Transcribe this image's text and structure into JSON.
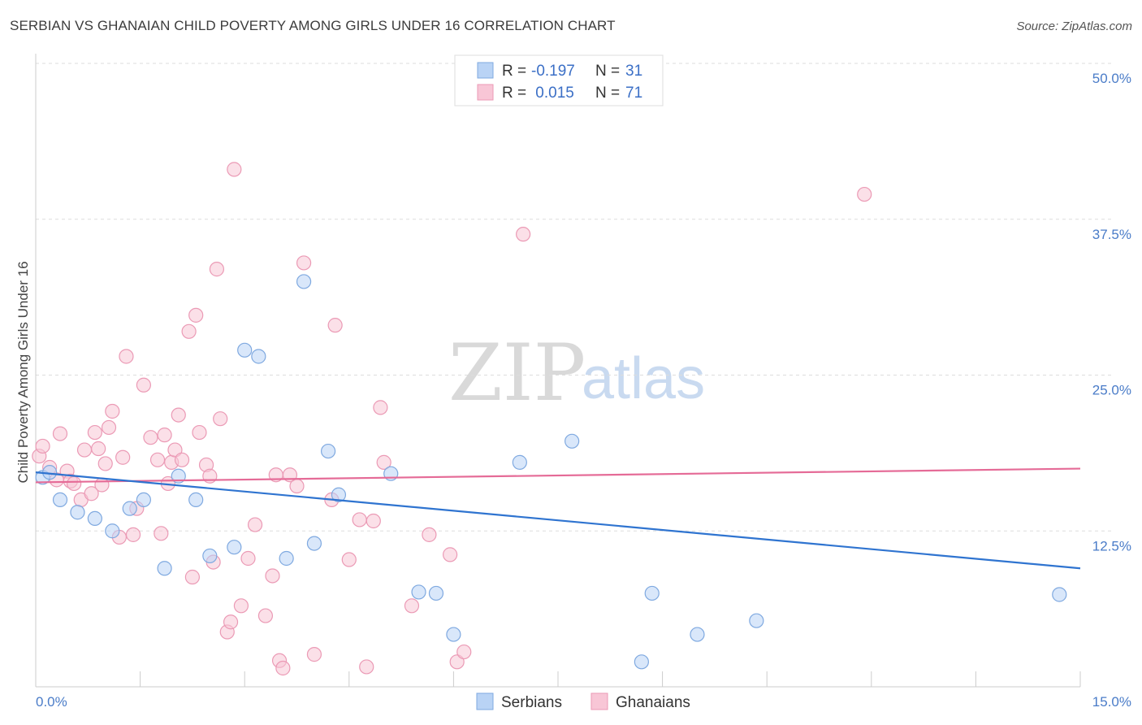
{
  "header": {
    "title": "SERBIAN VS GHANAIAN CHILD POVERTY AMONG GIRLS UNDER 16 CORRELATION CHART",
    "source": "Source: ZipAtlas.com"
  },
  "legend": {
    "rows": [
      {
        "r_label": "R = ",
        "r_value": "-0.197",
        "n_label": "N = ",
        "n_value": "31"
      },
      {
        "r_label": "R = ",
        "r_value": " 0.015",
        "n_label": "N = ",
        "n_value": "71"
      }
    ]
  },
  "bottom_legend": {
    "items": [
      {
        "label": "Serbians"
      },
      {
        "label": "Ghanaians"
      }
    ]
  },
  "watermark": {
    "zip": "ZIP",
    "atlas": "atlas"
  },
  "colors": {
    "serbian_fill": "#b9d3f5",
    "serbian_stroke": "#7fa9e0",
    "serbian_line": "#2f74d0",
    "ghanaian_fill": "#f8c6d6",
    "ghanaian_stroke": "#eb9ab5",
    "ghanaian_line": "#e56b97",
    "grid": "#dddddd",
    "tick": "#4a7cc8"
  },
  "chart_data": {
    "type": "scatter",
    "title": "SERBIAN VS GHANAIAN CHILD POVERTY AMONG GIRLS UNDER 16 CORRELATION CHART",
    "xlabel": "",
    "ylabel": "Child Poverty Among Girls Under 16",
    "xlim": [
      0,
      15
    ],
    "ylim": [
      0,
      50
    ],
    "x_tick_labels": [
      "0.0%",
      "15.0%"
    ],
    "y_ticks": [
      12.5,
      25.0,
      37.5,
      50.0
    ],
    "y_tick_labels": [
      "12.5%",
      "25.0%",
      "37.5%",
      "50.0%"
    ],
    "grid": true,
    "legend_position": "top-center",
    "series": [
      {
        "name": "Serbians",
        "r": -0.197,
        "n": 31,
        "trend": [
          [
            0,
            17.2
          ],
          [
            15,
            9.5
          ]
        ],
        "points": [
          [
            0.1,
            16.8
          ],
          [
            0.2,
            17.2
          ],
          [
            0.35,
            15.0
          ],
          [
            0.6,
            14.0
          ],
          [
            0.85,
            13.5
          ],
          [
            1.1,
            12.5
          ],
          [
            1.35,
            14.3
          ],
          [
            1.55,
            15.0
          ],
          [
            1.85,
            9.5
          ],
          [
            2.05,
            16.9
          ],
          [
            2.3,
            15.0
          ],
          [
            2.5,
            10.5
          ],
          [
            2.85,
            11.2
          ],
          [
            3.0,
            27.0
          ],
          [
            3.2,
            26.5
          ],
          [
            3.6,
            10.3
          ],
          [
            3.85,
            32.5
          ],
          [
            4.0,
            11.5
          ],
          [
            4.2,
            18.9
          ],
          [
            4.35,
            15.4
          ],
          [
            5.1,
            17.1
          ],
          [
            5.5,
            7.6
          ],
          [
            5.75,
            7.5
          ],
          [
            6.0,
            4.2
          ],
          [
            6.95,
            18.0
          ],
          [
            7.7,
            19.7
          ],
          [
            8.7,
            2.0
          ],
          [
            8.85,
            7.5
          ],
          [
            9.5,
            4.2
          ],
          [
            10.35,
            5.3
          ],
          [
            14.7,
            7.4
          ]
        ]
      },
      {
        "name": "Ghanaians",
        "r": 0.015,
        "n": 71,
        "trend": [
          [
            0,
            16.4
          ],
          [
            15,
            17.5
          ]
        ],
        "points": [
          [
            0.05,
            18.5
          ],
          [
            0.1,
            19.3
          ],
          [
            0.2,
            17.6
          ],
          [
            0.3,
            16.6
          ],
          [
            0.35,
            20.3
          ],
          [
            0.45,
            17.3
          ],
          [
            0.5,
            16.5
          ],
          [
            0.55,
            16.3
          ],
          [
            0.65,
            15.0
          ],
          [
            0.7,
            19.0
          ],
          [
            0.8,
            15.5
          ],
          [
            0.85,
            20.4
          ],
          [
            0.9,
            19.1
          ],
          [
            0.95,
            16.2
          ],
          [
            1.0,
            17.9
          ],
          [
            1.05,
            20.8
          ],
          [
            1.1,
            22.1
          ],
          [
            1.2,
            12.0
          ],
          [
            1.25,
            18.4
          ],
          [
            1.3,
            26.5
          ],
          [
            1.4,
            12.2
          ],
          [
            1.45,
            14.3
          ],
          [
            1.55,
            24.2
          ],
          [
            1.65,
            20.0
          ],
          [
            1.75,
            18.2
          ],
          [
            1.8,
            12.3
          ],
          [
            1.85,
            20.2
          ],
          [
            1.9,
            16.3
          ],
          [
            1.95,
            18.0
          ],
          [
            2.0,
            19.0
          ],
          [
            2.05,
            21.8
          ],
          [
            2.1,
            18.2
          ],
          [
            2.2,
            28.5
          ],
          [
            2.25,
            8.8
          ],
          [
            2.3,
            29.8
          ],
          [
            2.35,
            20.4
          ],
          [
            2.45,
            17.8
          ],
          [
            2.5,
            16.9
          ],
          [
            2.55,
            10.0
          ],
          [
            2.6,
            33.5
          ],
          [
            2.65,
            21.5
          ],
          [
            2.75,
            4.4
          ],
          [
            2.8,
            5.2
          ],
          [
            2.85,
            41.5
          ],
          [
            2.95,
            6.5
          ],
          [
            3.05,
            10.3
          ],
          [
            3.15,
            13.0
          ],
          [
            3.3,
            5.7
          ],
          [
            3.4,
            8.9
          ],
          [
            3.45,
            17.0
          ],
          [
            3.5,
            2.1
          ],
          [
            3.55,
            1.5
          ],
          [
            3.65,
            17.0
          ],
          [
            3.75,
            16.1
          ],
          [
            3.85,
            34.0
          ],
          [
            4.0,
            2.6
          ],
          [
            4.25,
            15.0
          ],
          [
            4.3,
            29.0
          ],
          [
            4.5,
            10.2
          ],
          [
            4.65,
            13.4
          ],
          [
            4.75,
            1.6
          ],
          [
            4.85,
            13.3
          ],
          [
            4.95,
            22.4
          ],
          [
            5.0,
            18.0
          ],
          [
            5.4,
            6.5
          ],
          [
            5.65,
            12.2
          ],
          [
            5.95,
            10.6
          ],
          [
            6.05,
            2.0
          ],
          [
            6.15,
            2.8
          ],
          [
            7.0,
            36.3
          ],
          [
            11.9,
            39.5
          ]
        ]
      }
    ]
  }
}
